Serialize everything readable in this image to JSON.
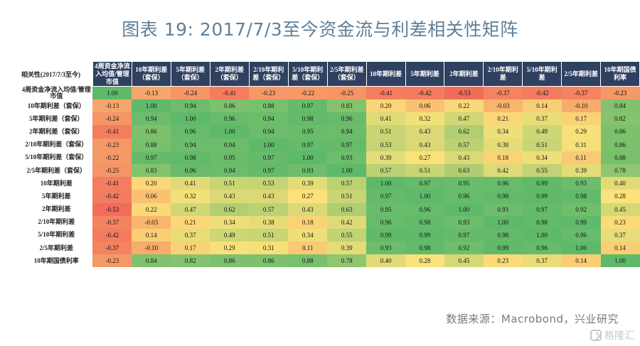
{
  "title": "图表 19: 2017/7/3至今资金流与利差相关性矩阵",
  "footer": "数据来源：Macrobond，兴业研究",
  "watermark": "格隆汇",
  "chart_data": {
    "type": "heatmap",
    "title": "图表 19: 2017/7/3至今资金流与利差相关性矩阵",
    "corner_label": "相关性(2017/7/3至今)",
    "row_labels": [
      "4周资金净流入均值/管理市值",
      "10年期利差（套保）",
      "5年期利差（套保）",
      "2年期利差（套保）",
      "2/10年期利差（套保）",
      "5/10年期利差（套保）",
      "2/5年期利差（套保）",
      "10年期利差",
      "5年期利差",
      "2年期利差",
      "2/10年期利差",
      "5/10年期利差",
      "2/5年期利差",
      "10年期国债利率"
    ],
    "column_labels": [
      "4周资金净流入均值/管理市值",
      "10年期利差（套保）",
      "5年期利差（套保）",
      "2年期利差（套保）",
      "2/10年期利差（套保）",
      "5/10年期利差（套保）",
      "2/5年期利差（套保）",
      "10年期利差",
      "5年期利差",
      "2年期利差",
      "2/10年期利差",
      "5/10年期利差",
      "2/5年期利差",
      "10年期国债利率"
    ],
    "values": [
      [
        1.0,
        -0.13,
        -0.24,
        -0.41,
        -0.23,
        -0.22,
        -0.25,
        -0.41,
        -0.42,
        -0.53,
        -0.37,
        -0.42,
        -0.37,
        -0.23
      ],
      [
        -0.13,
        1.0,
        0.94,
        0.86,
        0.88,
        0.97,
        0.83,
        0.2,
        0.06,
        0.22,
        -0.03,
        0.14,
        -0.1,
        0.84
      ],
      [
        -0.24,
        0.94,
        1.0,
        0.96,
        0.94,
        0.98,
        0.96,
        0.41,
        0.32,
        0.47,
        0.21,
        0.37,
        0.17,
        0.82
      ],
      [
        -0.41,
        0.86,
        0.96,
        1.0,
        0.94,
        0.95,
        0.94,
        0.51,
        0.43,
        0.62,
        0.34,
        0.49,
        0.29,
        0.86
      ],
      [
        -0.23,
        0.88,
        0.94,
        0.94,
        1.0,
        0.97,
        0.97,
        0.53,
        0.43,
        0.57,
        0.38,
        0.51,
        0.31,
        0.86
      ],
      [
        -0.22,
        0.97,
        0.98,
        0.95,
        0.97,
        1.0,
        0.93,
        0.39,
        0.27,
        0.43,
        0.18,
        0.34,
        0.11,
        0.88
      ],
      [
        -0.25,
        0.83,
        0.96,
        0.94,
        0.97,
        0.93,
        1.0,
        0.57,
        0.51,
        0.63,
        0.42,
        0.55,
        0.39,
        0.78
      ],
      [
        -0.41,
        0.2,
        0.41,
        0.51,
        0.53,
        0.39,
        0.57,
        1.0,
        0.97,
        0.95,
        0.96,
        0.99,
        0.93,
        0.4
      ],
      [
        -0.42,
        0.06,
        0.32,
        0.43,
        0.43,
        0.27,
        0.51,
        0.97,
        1.0,
        0.96,
        0.98,
        0.99,
        0.98,
        0.28
      ],
      [
        -0.53,
        0.22,
        0.47,
        0.62,
        0.57,
        0.43,
        0.63,
        0.95,
        0.96,
        1.0,
        0.93,
        0.97,
        0.92,
        0.45
      ],
      [
        -0.37,
        -0.03,
        0.21,
        0.34,
        0.38,
        0.18,
        0.42,
        0.96,
        0.98,
        0.93,
        1.0,
        0.98,
        0.99,
        0.23
      ],
      [
        -0.42,
        0.14,
        0.37,
        0.49,
        0.51,
        0.34,
        0.55,
        0.99,
        0.99,
        0.97,
        0.98,
        1.0,
        0.96,
        0.37
      ],
      [
        -0.37,
        -0.1,
        0.17,
        0.29,
        0.31,
        0.11,
        0.39,
        0.93,
        0.98,
        0.92,
        0.99,
        0.96,
        1.0,
        0.14
      ],
      [
        -0.23,
        0.84,
        0.82,
        0.86,
        0.86,
        0.88,
        0.78,
        0.4,
        0.28,
        0.45,
        0.23,
        0.37,
        0.14,
        1.0
      ]
    ],
    "color_scale": {
      "low": "#f2695b",
      "mid": "#fbe27a",
      "high": "#5fb96a"
    },
    "header_color": "#2f4060",
    "title_color": "#5f7f98"
  }
}
